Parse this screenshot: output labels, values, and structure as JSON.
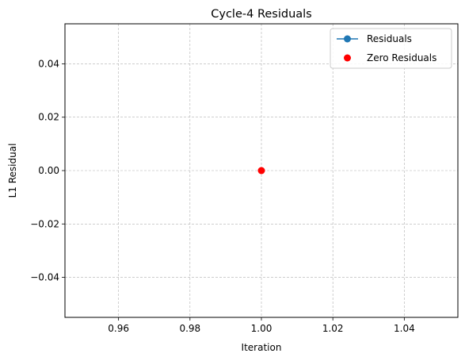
{
  "chart_data": {
    "type": "scatter",
    "title": "Cycle-4 Residuals",
    "xlabel": "Iteration",
    "ylabel": "L1 Residual",
    "xlim": [
      0.945,
      1.055
    ],
    "ylim": [
      -0.055,
      0.055
    ],
    "x_ticks": [
      0.96,
      0.98,
      1.0,
      1.02,
      1.04
    ],
    "x_tick_labels": [
      "0.96",
      "0.98",
      "1.00",
      "1.02",
      "1.04"
    ],
    "y_ticks": [
      -0.04,
      -0.02,
      0.0,
      0.02,
      0.04
    ],
    "y_tick_labels": [
      "−0.04",
      "−0.02",
      "0.00",
      "0.02",
      "0.04"
    ],
    "grid": true,
    "legend_position": "top-right",
    "series": [
      {
        "name": "Residuals",
        "kind": "line-marker",
        "color": "#1f77b4",
        "x": [
          1.0
        ],
        "y": [
          0.0
        ]
      },
      {
        "name": "Zero Residuals",
        "kind": "scatter",
        "color": "#ff0000",
        "x": [
          1.0
        ],
        "y": [
          0.0
        ]
      }
    ]
  }
}
